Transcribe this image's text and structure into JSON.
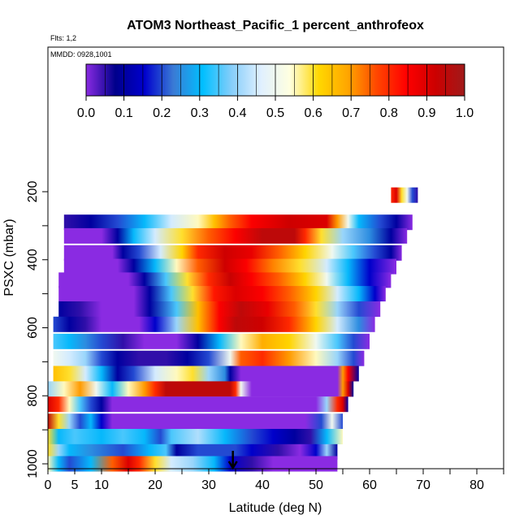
{
  "chart_data": {
    "type": "heatmap",
    "title": "ATOM3 Northeast_Pacific_1 percent_anthrofeox",
    "subtitle_flights": "Flts: 1,2",
    "subtitle_dates": "MMDD: 0928,1001",
    "xlabel": "Latitude (deg N)",
    "ylabel": "PSXC (mbar)",
    "xlim": [
      0,
      85
    ],
    "ylim": [
      1000,
      100
    ],
    "y_reversed": true,
    "x_ticks": [
      0,
      5,
      10,
      20,
      30,
      40,
      50,
      60,
      70,
      80
    ],
    "x_tick_labels": [
      "0",
      "5",
      "10",
      "20",
      "30",
      "40",
      "50",
      "60",
      "70",
      "80"
    ],
    "x_minor_ticks": [
      15,
      25,
      35,
      45,
      55,
      65,
      75,
      85
    ],
    "y_ticks": [
      200,
      400,
      600,
      800,
      1000
    ],
    "y_tick_labels": [
      "200",
      "400",
      "600",
      "800",
      "1000"
    ],
    "y_minor_ticks": [
      300,
      500,
      700,
      900
    ],
    "colorbar": {
      "min": 0.0,
      "max": 1.0,
      "ticks": [
        0.0,
        0.1,
        0.2,
        0.3,
        0.4,
        0.5,
        0.6,
        0.7,
        0.8,
        0.9,
        1.0
      ],
      "tick_labels": [
        "0.0",
        "0.1",
        "0.2",
        "0.3",
        "0.4",
        "0.5",
        "0.6",
        "0.7",
        "0.8",
        "0.9",
        "1.0"
      ],
      "colors": [
        "#8a2be2",
        "#00008b",
        "#0000cd",
        "#3a7bd5",
        "#00bfff",
        "#87cefa",
        "#e0f0ff",
        "#ffffe0",
        "#ffd700",
        "#ffa500",
        "#ff4500",
        "#ff0000",
        "#cc0000",
        "#a01a1a"
      ]
    },
    "marker": {
      "type": "arrow-down",
      "x": 34.5,
      "y": 1000
    },
    "rows": [
      {
        "p": 210,
        "x0": 64,
        "x1": 69,
        "stops": [
          [
            64,
            0.8
          ],
          [
            65,
            0.9
          ],
          [
            66,
            0.6
          ],
          [
            67,
            0.5
          ],
          [
            68,
            0.2
          ],
          [
            69,
            0.05
          ]
        ]
      },
      {
        "p": 290,
        "x0": 3,
        "x1": 68,
        "stops": [
          [
            3,
            0.05
          ],
          [
            8,
            0.1
          ],
          [
            13,
            0.2
          ],
          [
            18,
            0.3
          ],
          [
            23,
            0.45
          ],
          [
            28,
            0.55
          ],
          [
            31,
            0.65
          ],
          [
            34,
            0.75
          ],
          [
            38,
            0.85
          ],
          [
            45,
            0.92
          ],
          [
            52,
            0.9
          ],
          [
            54,
            0.7
          ],
          [
            56,
            0.5
          ],
          [
            58,
            0.3
          ],
          [
            62,
            0.2
          ],
          [
            65,
            0.1
          ],
          [
            68,
            0.0
          ]
        ]
      },
      {
        "p": 330,
        "x0": 3,
        "x1": 67,
        "stops": [
          [
            3,
            0.0
          ],
          [
            10,
            0.0
          ],
          [
            13,
            0.1
          ],
          [
            16,
            0.3
          ],
          [
            20,
            0.45
          ],
          [
            25,
            0.6
          ],
          [
            30,
            0.75
          ],
          [
            35,
            0.85
          ],
          [
            40,
            0.95
          ],
          [
            46,
            0.95
          ],
          [
            48,
            0.8
          ],
          [
            51,
            0.6
          ],
          [
            55,
            0.4
          ],
          [
            60,
            0.25
          ],
          [
            64,
            0.1
          ],
          [
            67,
            0.0
          ]
        ]
      },
      {
        "p": 380,
        "x0": 3,
        "x1": 66,
        "stops": [
          [
            3,
            0.0
          ],
          [
            12,
            0.0
          ],
          [
            14,
            0.1
          ],
          [
            17,
            0.2
          ],
          [
            21,
            0.45
          ],
          [
            25,
            0.62
          ],
          [
            28,
            0.8
          ],
          [
            33,
            0.92
          ],
          [
            38,
            0.88
          ],
          [
            43,
            0.75
          ],
          [
            48,
            0.62
          ],
          [
            53,
            0.5
          ],
          [
            57,
            0.35
          ],
          [
            61,
            0.2
          ],
          [
            64,
            0.1
          ],
          [
            66,
            0.0
          ]
        ]
      },
      {
        "p": 420,
        "x0": 3,
        "x1": 65,
        "stops": [
          [
            3,
            0.0
          ],
          [
            13,
            0.0
          ],
          [
            16,
            0.1
          ],
          [
            20,
            0.3
          ],
          [
            24,
            0.55
          ],
          [
            28,
            0.75
          ],
          [
            33,
            0.92
          ],
          [
            37,
            0.85
          ],
          [
            42,
            0.72
          ],
          [
            47,
            0.6
          ],
          [
            52,
            0.45
          ],
          [
            56,
            0.3
          ],
          [
            60,
            0.15
          ],
          [
            65,
            0.0
          ]
        ]
      },
      {
        "p": 460,
        "x0": 2,
        "x1": 64,
        "stops": [
          [
            2,
            0.0
          ],
          [
            15,
            0.0
          ],
          [
            18,
            0.1
          ],
          [
            22,
            0.35
          ],
          [
            26,
            0.6
          ],
          [
            30,
            0.8
          ],
          [
            34,
            0.93
          ],
          [
            38,
            0.85
          ],
          [
            43,
            0.75
          ],
          [
            48,
            0.62
          ],
          [
            52,
            0.5
          ],
          [
            56,
            0.3
          ],
          [
            60,
            0.15
          ],
          [
            64,
            0.0
          ]
        ]
      },
      {
        "p": 500,
        "x0": 2,
        "x1": 63,
        "stops": [
          [
            2,
            0.0
          ],
          [
            16,
            0.0
          ],
          [
            19,
            0.1
          ],
          [
            23,
            0.35
          ],
          [
            27,
            0.6
          ],
          [
            31,
            0.82
          ],
          [
            35,
            0.9
          ],
          [
            40,
            0.85
          ],
          [
            45,
            0.75
          ],
          [
            50,
            0.62
          ],
          [
            54,
            0.45
          ],
          [
            58,
            0.3
          ],
          [
            61,
            0.15
          ],
          [
            63,
            0.0
          ]
        ]
      },
      {
        "p": 545,
        "x0": 2,
        "x1": 62,
        "stops": [
          [
            2,
            0.1
          ],
          [
            6,
            0.05
          ],
          [
            10,
            0.0
          ],
          [
            16,
            0.0
          ],
          [
            19,
            0.1
          ],
          [
            24,
            0.35
          ],
          [
            28,
            0.65
          ],
          [
            32,
            0.85
          ],
          [
            36,
            0.95
          ],
          [
            41,
            0.88
          ],
          [
            46,
            0.75
          ],
          [
            50,
            0.6
          ],
          [
            54,
            0.4
          ],
          [
            58,
            0.2
          ],
          [
            62,
            0.0
          ]
        ]
      },
      {
        "p": 590,
        "x0": 1,
        "x1": 61,
        "stops": [
          [
            1,
            0.2
          ],
          [
            4,
            0.1
          ],
          [
            7,
            0.05
          ],
          [
            10,
            0.0
          ],
          [
            17,
            0.0
          ],
          [
            20,
            0.15
          ],
          [
            24,
            0.4
          ],
          [
            28,
            0.65
          ],
          [
            32,
            0.85
          ],
          [
            35,
            0.95
          ],
          [
            40,
            0.92
          ],
          [
            45,
            0.8
          ],
          [
            50,
            0.62
          ],
          [
            54,
            0.45
          ],
          [
            58,
            0.25
          ],
          [
            61,
            0.0
          ]
        ]
      },
      {
        "p": 640,
        "x0": 1,
        "x1": 60,
        "stops": [
          [
            1,
            0.35
          ],
          [
            4,
            0.3
          ],
          [
            7,
            0.25
          ],
          [
            10,
            0.2
          ],
          [
            14,
            0.05
          ],
          [
            18,
            0.0
          ],
          [
            24,
            0.0
          ],
          [
            28,
            0.1
          ],
          [
            32,
            0.3
          ],
          [
            36,
            0.55
          ],
          [
            40,
            0.68
          ],
          [
            45,
            0.62
          ],
          [
            50,
            0.5
          ],
          [
            54,
            0.35
          ],
          [
            57,
            0.2
          ],
          [
            60,
            0.0
          ]
        ]
      },
      {
        "p": 690,
        "x0": 1,
        "x1": 59,
        "stops": [
          [
            1,
            0.5
          ],
          [
            4,
            0.45
          ],
          [
            7,
            0.4
          ],
          [
            10,
            0.2
          ],
          [
            13,
            0.1
          ],
          [
            17,
            0.05
          ],
          [
            22,
            0.05
          ],
          [
            26,
            0.1
          ],
          [
            30,
            0.2
          ],
          [
            34,
            0.5
          ],
          [
            36,
            0.75
          ],
          [
            40,
            0.8
          ],
          [
            45,
            0.7
          ],
          [
            50,
            0.55
          ],
          [
            54,
            0.4
          ],
          [
            57,
            0.2
          ],
          [
            59,
            0.0
          ]
        ]
      },
      {
        "p": 735,
        "x0": 1,
        "x1": 58,
        "stops": [
          [
            1,
            0.65
          ],
          [
            4,
            0.6
          ],
          [
            7,
            0.45
          ],
          [
            10,
            0.3
          ],
          [
            13,
            0.1
          ],
          [
            16,
            0.2
          ],
          [
            20,
            0.45
          ],
          [
            24,
            0.55
          ],
          [
            27,
            0.6
          ],
          [
            30,
            0.4
          ],
          [
            33,
            0.25
          ],
          [
            34,
            0.1
          ],
          [
            36,
            0.0
          ],
          [
            54,
            0.0
          ],
          [
            55,
            0.7
          ],
          [
            56,
            0.85
          ],
          [
            58,
            0.1
          ]
        ]
      },
      {
        "p": 780,
        "x0": 0,
        "x1": 57,
        "stops": [
          [
            0,
            0.4
          ],
          [
            3,
            0.55
          ],
          [
            6,
            0.7
          ],
          [
            9,
            0.5
          ],
          [
            12,
            0.3
          ],
          [
            15,
            0.55
          ],
          [
            18,
            0.7
          ],
          [
            20,
            0.8
          ],
          [
            22,
            0.95
          ],
          [
            27,
            0.95
          ],
          [
            30,
            0.95
          ],
          [
            34,
            0.95
          ],
          [
            35,
            0.8
          ],
          [
            36,
            0.5
          ],
          [
            38,
            0.0
          ],
          [
            54,
            0.0
          ],
          [
            55,
            0.7
          ],
          [
            56,
            0.9
          ],
          [
            57,
            0.1
          ]
        ]
      },
      {
        "p": 825,
        "x0": 0,
        "x1": 56,
        "stops": [
          [
            0,
            0.9
          ],
          [
            2,
            0.8
          ],
          [
            4,
            0.55
          ],
          [
            6,
            0.35
          ],
          [
            8,
            0.2
          ],
          [
            10,
            0.1
          ],
          [
            12,
            0.0
          ],
          [
            50,
            0.0
          ],
          [
            52,
            0.4
          ],
          [
            54,
            0.8
          ],
          [
            55,
            0.9
          ],
          [
            56,
            0.1
          ]
        ]
      },
      {
        "p": 875,
        "x0": 0,
        "x1": 55,
        "stops": [
          [
            0,
            0.95
          ],
          [
            2,
            0.6
          ],
          [
            4,
            0.4
          ],
          [
            6,
            0.2
          ],
          [
            8,
            0.3
          ],
          [
            10,
            0.15
          ],
          [
            12,
            0.0
          ],
          [
            48,
            0.0
          ],
          [
            51,
            0.2
          ],
          [
            53,
            0.5
          ],
          [
            55,
            0.2
          ]
        ]
      },
      {
        "p": 920,
        "x0": 0,
        "x1": 55,
        "stops": [
          [
            0,
            0.6
          ],
          [
            2,
            0.3
          ],
          [
            5,
            0.35
          ],
          [
            10,
            0.3
          ],
          [
            14,
            0.35
          ],
          [
            18,
            0.3
          ],
          [
            21,
            0.2
          ],
          [
            23,
            0.35
          ],
          [
            28,
            0.42
          ],
          [
            33,
            0.3
          ],
          [
            38,
            0.2
          ],
          [
            42,
            0.15
          ],
          [
            46,
            0.1
          ],
          [
            49,
            0.05
          ],
          [
            52,
            0.3
          ],
          [
            55,
            0.55
          ]
        ]
      },
      {
        "p": 965,
        "x0": 0,
        "x1": 54,
        "stops": [
          [
            0,
            0.6
          ],
          [
            2,
            0.4
          ],
          [
            4,
            0.3
          ],
          [
            8,
            0.25
          ],
          [
            14,
            0.2
          ],
          [
            19,
            0.3
          ],
          [
            22,
            0.35
          ],
          [
            24,
            0.1
          ],
          [
            28,
            0.2
          ],
          [
            32,
            0.2
          ],
          [
            35,
            0.2
          ],
          [
            38,
            0.15
          ],
          [
            43,
            0.05
          ],
          [
            47,
            0.0
          ],
          [
            50,
            0.15
          ],
          [
            52,
            0.4
          ],
          [
            54,
            0.1
          ]
        ]
      },
      {
        "p": 1000,
        "x0": 0,
        "x1": 54,
        "stops": [
          [
            0,
            0.55
          ],
          [
            2,
            0.3
          ],
          [
            4,
            0.2
          ],
          [
            8,
            0.3
          ],
          [
            12,
            0.75
          ],
          [
            15,
            0.9
          ],
          [
            17,
            0.8
          ],
          [
            20,
            0.6
          ],
          [
            23,
            0.45
          ],
          [
            27,
            0.4
          ],
          [
            31,
            0.3
          ],
          [
            34,
            0.15
          ],
          [
            38,
            0.05
          ],
          [
            42,
            0.0
          ],
          [
            54,
            0.0
          ]
        ]
      }
    ]
  }
}
